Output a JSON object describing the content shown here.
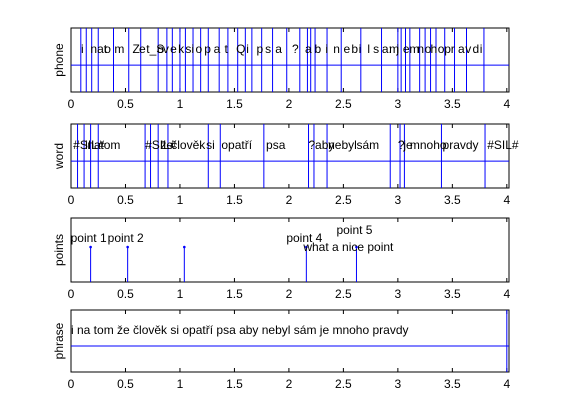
{
  "chart_data": {
    "type": "multi-tier annotation plot",
    "x_ticks": [
      0,
      0.5,
      1,
      1.5,
      2,
      2.5,
      3,
      3.5,
      4
    ],
    "x_tick_labels": [
      "0",
      "0.5",
      "1",
      "1.5",
      "2",
      "2.5",
      "3",
      "3.5",
      "4"
    ],
    "xlim": [
      0,
      4.02
    ],
    "line_color": "#0000ff",
    "tiers": [
      {
        "name": "phone",
        "kind": "interval",
        "boundaries": [
          0.09,
          0.14,
          0.19,
          0.25,
          0.39,
          0.53,
          0.64,
          0.8,
          0.88,
          0.93,
          1.0,
          1.05,
          1.12,
          1.19,
          1.26,
          1.36,
          1.44,
          1.53,
          1.6,
          1.66,
          1.75,
          1.85,
          1.98,
          2.1,
          2.17,
          2.2,
          2.24,
          2.35,
          2.48,
          2.66,
          2.85,
          3.0,
          3.03,
          3.07,
          3.11,
          3.2,
          3.25,
          3.3,
          3.35,
          3.43,
          3.52,
          3.63,
          3.79
        ],
        "labels": [
          {
            "x": 0.1,
            "text": "i"
          },
          {
            "x": 0.23,
            "text": "nat"
          },
          {
            "x": 0.42,
            "text": "o"
          },
          {
            "x": 0.56,
            "text": "m"
          },
          {
            "x": 0.81,
            "text": "Z"
          },
          {
            "x": 0.9,
            "text": "e"
          },
          {
            "x": 1.0,
            "text": "t_S"
          },
          {
            "x": 1.15,
            "text": "o"
          },
          {
            "x": 1.23,
            "text": "v"
          },
          {
            "x": 1.33,
            "text": "e"
          },
          {
            "x": 1.44,
            "text": "k"
          },
          {
            "x": 1.54,
            "text": "si"
          },
          {
            "x": 1.68,
            "text": "o"
          },
          {
            "x": 1.8,
            "text": "p"
          },
          {
            "x": 1.93,
            "text": "a"
          },
          {
            "x": 2.08,
            "text": "t"
          },
          {
            "x": 2.24,
            "text": "Q"
          },
          {
            "x": 2.38,
            "text": "i"
          },
          {
            "x": 2.52,
            "text": "p"
          },
          {
            "x": 2.64,
            "text": "s"
          },
          {
            "x": 2.78,
            "text": "a"
          },
          {
            "x": 3.01,
            "text": "?"
          },
          {
            "x": 3.19,
            "text": "a"
          },
          {
            "x": 3.32,
            "text": "b"
          },
          {
            "x": 3.47,
            "text": "i"
          },
          {
            "x": 3.58,
            "text": "n"
          },
          {
            "x": 3.72,
            "text": "e"
          },
          {
            "x": 3.83,
            "text": "b"
          },
          {
            "x": 3.93,
            "text": "i"
          },
          {
            "x": 4.05,
            "text": "l"
          },
          {
            "x": 4.13,
            "text": "s"
          },
          {
            "x": 4.25,
            "text": "a:"
          },
          {
            "x": 4.35,
            "text": "m"
          },
          {
            "x": 4.45,
            "text": "j"
          },
          {
            "x": 4.54,
            "text": "e"
          },
          {
            "x": 4.63,
            "text": "m"
          },
          {
            "x": 4.74,
            "text": "n"
          },
          {
            "x": 4.84,
            "text": "o"
          },
          {
            "x": 4.92,
            "text": "h"
          },
          {
            "x": 5.02,
            "text": "o"
          },
          {
            "x": 5.11,
            "text": "p"
          },
          {
            "x": 5.2,
            "text": "r"
          },
          {
            "x": 5.3,
            "text": "a"
          },
          {
            "x": 5.4,
            "text": "v"
          },
          {
            "x": 5.5,
            "text": "d"
          },
          {
            "x": 5.6,
            "text": "i"
          }
        ]
      },
      {
        "name": "word",
        "kind": "interval",
        "boundaries": [
          0.06,
          0.12,
          0.18,
          0.25,
          0.68,
          0.73,
          0.8,
          0.89,
          1.26,
          1.37,
          1.77,
          2.18,
          2.23,
          2.35,
          2.93,
          3.02,
          3.06,
          3.4,
          3.8
        ],
        "labels": [
          {
            "x": 0.02,
            "text": "#SIL#"
          },
          {
            "x": 0.13,
            "text": "i"
          },
          {
            "x": 0.15,
            "text": "na"
          },
          {
            "x": 0.27,
            "text": "tom"
          },
          {
            "x": 0.68,
            "text": "#SIL#"
          },
          {
            "x": 0.82,
            "text": "že"
          },
          {
            "x": 0.92,
            "text": "člověk"
          },
          {
            "x": 1.24,
            "text": "si"
          },
          {
            "x": 1.38,
            "text": "opatří"
          },
          {
            "x": 1.79,
            "text": "psa"
          },
          {
            "x": 2.18,
            "text": "?"
          },
          {
            "x": 2.24,
            "text": "aby"
          },
          {
            "x": 2.36,
            "text": "nebyl"
          },
          {
            "x": 2.62,
            "text": "sám"
          },
          {
            "x": 3.0,
            "text": "?"
          },
          {
            "x": 3.05,
            "text": "je"
          },
          {
            "x": 3.11,
            "text": "mnoho"
          },
          {
            "x": 3.41,
            "text": "pravdy"
          },
          {
            "x": 3.82,
            "text": "#SIL#"
          }
        ]
      },
      {
        "name": "points",
        "kind": "point",
        "points": [
          {
            "x": 0.18,
            "label": "point 1"
          },
          {
            "x": 0.52,
            "label": "point 2"
          },
          {
            "x": 1.04,
            "label": ""
          },
          {
            "x": 2.16,
            "label": "point 4"
          },
          {
            "x": 2.62,
            "label": "point 5"
          }
        ],
        "extra_labels": [
          {
            "x": 2.16,
            "text": "what a nice point"
          }
        ]
      },
      {
        "name": "phrase",
        "kind": "interval",
        "boundaries": [
          4.0
        ],
        "labels": [
          {
            "x": 0.0,
            "text": "i na tom že člověk si opatří psa aby nebyl sám je mnoho pravdy"
          }
        ]
      }
    ]
  }
}
